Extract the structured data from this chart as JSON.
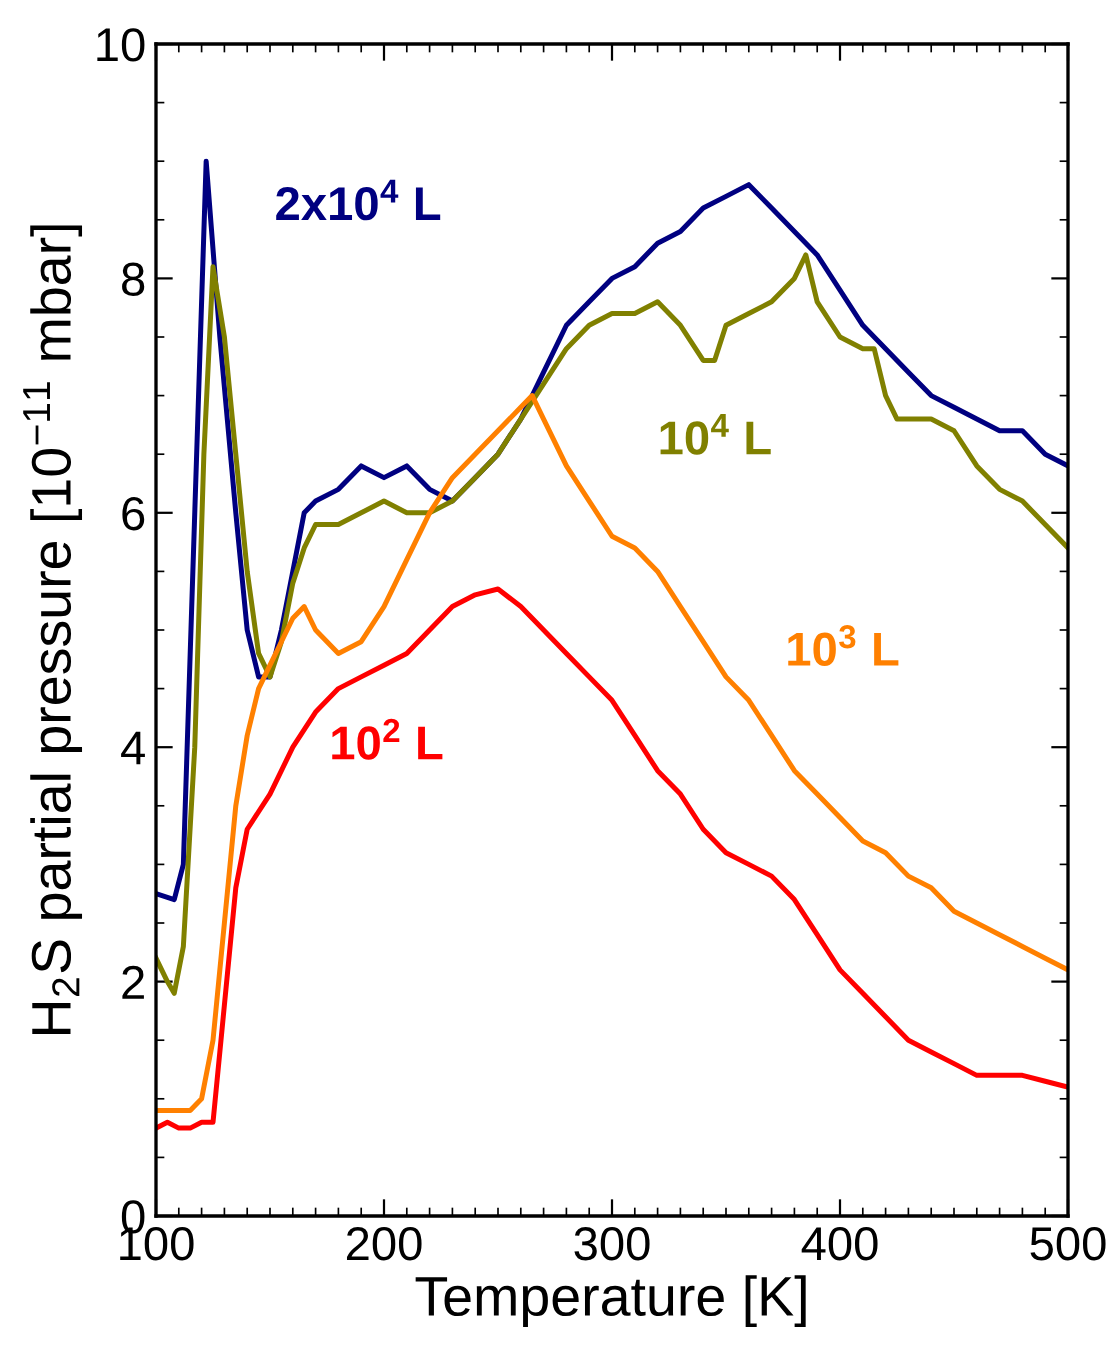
{
  "chart_data": {
    "type": "line",
    "xlabel": "Temperature [K]",
    "ylabel": "H$_{2}$S partial pressure [10$^{−11}$ mbar]",
    "xlim": [
      100,
      500
    ],
    "ylim": [
      0,
      10
    ],
    "xticks": [
      100,
      200,
      300,
      400,
      500
    ],
    "yticks": [
      0,
      2,
      4,
      6,
      8,
      10
    ],
    "grid": false,
    "legend": false,
    "marker": "none",
    "line_style": "solid",
    "series": [
      {
        "name": "2x10$^{4}$ L",
        "color": "#000080",
        "x": [
          100,
          108,
          112,
          117,
          122,
          128,
          135,
          140,
          145,
          150,
          155,
          160,
          165,
          170,
          180,
          190,
          200,
          210,
          220,
          230,
          240,
          250,
          260,
          270,
          280,
          290,
          300,
          310,
          320,
          330,
          340,
          350,
          360,
          370,
          380,
          390,
          400,
          410,
          420,
          430,
          440,
          450,
          460,
          470,
          480,
          490,
          500
        ],
        "values": [
          2.75,
          2.7,
          3.0,
          6.0,
          9.0,
          7.5,
          6.0,
          5.0,
          4.6,
          4.6,
          5.0,
          5.5,
          6.0,
          6.1,
          6.2,
          6.4,
          6.3,
          6.4,
          6.2,
          6.1,
          6.3,
          6.5,
          6.8,
          7.2,
          7.6,
          7.8,
          8.0,
          8.1,
          8.3,
          8.4,
          8.6,
          8.7,
          8.8,
          8.6,
          8.4,
          8.2,
          7.9,
          7.6,
          7.4,
          7.2,
          7.0,
          6.9,
          6.8,
          6.7,
          6.7,
          6.5,
          6.4
        ]
      },
      {
        "name": "10$^{4}$ L",
        "color": "#808000",
        "x": [
          100,
          105,
          108,
          112,
          117,
          121,
          125,
          130,
          135,
          140,
          145,
          150,
          155,
          160,
          165,
          170,
          180,
          190,
          200,
          210,
          220,
          230,
          240,
          250,
          260,
          270,
          280,
          290,
          300,
          310,
          320,
          330,
          340,
          345,
          350,
          360,
          370,
          380,
          385,
          390,
          400,
          410,
          415,
          420,
          425,
          430,
          440,
          450,
          460,
          470,
          480,
          490,
          500
        ],
        "values": [
          2.2,
          2.0,
          1.9,
          2.3,
          4.0,
          6.5,
          8.1,
          7.5,
          6.5,
          5.5,
          4.8,
          4.6,
          4.9,
          5.4,
          5.7,
          5.9,
          5.9,
          6.0,
          6.1,
          6.0,
          6.0,
          6.1,
          6.3,
          6.5,
          6.8,
          7.1,
          7.4,
          7.6,
          7.7,
          7.7,
          7.8,
          7.6,
          7.3,
          7.3,
          7.6,
          7.7,
          7.8,
          8.0,
          8.2,
          7.8,
          7.5,
          7.4,
          7.4,
          7.0,
          6.8,
          6.8,
          6.8,
          6.7,
          6.4,
          6.2,
          6.1,
          5.9,
          5.7
        ]
      },
      {
        "name": "10$^{3}$ L",
        "color": "#ff8000",
        "x": [
          100,
          110,
          115,
          120,
          125,
          130,
          135,
          140,
          145,
          150,
          155,
          160,
          165,
          170,
          180,
          190,
          200,
          210,
          220,
          230,
          240,
          250,
          260,
          265,
          270,
          280,
          290,
          300,
          310,
          320,
          330,
          340,
          350,
          360,
          370,
          380,
          390,
          400,
          410,
          420,
          430,
          440,
          450,
          460,
          470,
          480,
          490,
          500
        ],
        "values": [
          0.9,
          0.9,
          0.9,
          1.0,
          1.5,
          2.5,
          3.5,
          4.1,
          4.5,
          4.7,
          4.9,
          5.1,
          5.2,
          5.0,
          4.8,
          4.9,
          5.2,
          5.6,
          6.0,
          6.3,
          6.5,
          6.7,
          6.9,
          7.0,
          6.8,
          6.4,
          6.1,
          5.8,
          5.7,
          5.5,
          5.2,
          4.9,
          4.6,
          4.4,
          4.1,
          3.8,
          3.6,
          3.4,
          3.2,
          3.1,
          2.9,
          2.8,
          2.6,
          2.5,
          2.4,
          2.3,
          2.2,
          2.1
        ]
      },
      {
        "name": "10$^{2}$ L",
        "color": "#ff0000",
        "x": [
          100,
          105,
          110,
          115,
          120,
          125,
          130,
          135,
          140,
          150,
          160,
          170,
          180,
          190,
          200,
          210,
          220,
          230,
          240,
          250,
          260,
          270,
          280,
          290,
          300,
          310,
          320,
          330,
          340,
          350,
          360,
          370,
          380,
          390,
          400,
          410,
          420,
          430,
          440,
          450,
          460,
          470,
          480,
          490,
          500
        ],
        "values": [
          0.75,
          0.8,
          0.75,
          0.75,
          0.8,
          0.8,
          1.8,
          2.8,
          3.3,
          3.6,
          4.0,
          4.3,
          4.5,
          4.6,
          4.7,
          4.8,
          5.0,
          5.2,
          5.3,
          5.35,
          5.2,
          5.0,
          4.8,
          4.6,
          4.4,
          4.1,
          3.8,
          3.6,
          3.3,
          3.1,
          3.0,
          2.9,
          2.7,
          2.4,
          2.1,
          1.9,
          1.7,
          1.5,
          1.4,
          1.3,
          1.2,
          1.2,
          1.2,
          1.15,
          1.1
        ]
      }
    ]
  }
}
